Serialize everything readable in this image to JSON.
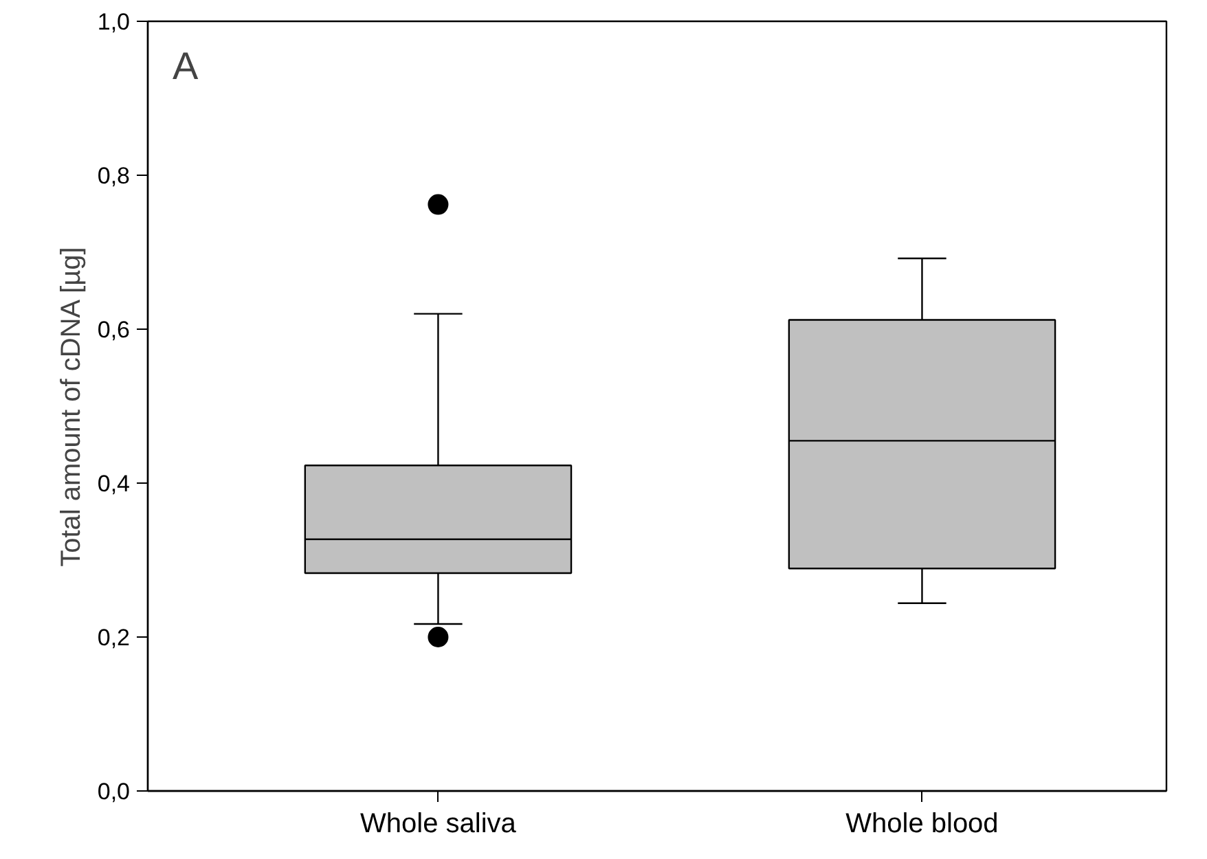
{
  "chart_data": {
    "type": "box",
    "ylabel": "Total amount of cDNA [µg]",
    "categories": [
      "Whole saliva",
      "Whole blood"
    ],
    "ylim": [
      0,
      1
    ],
    "yticks": [
      {
        "value": 0,
        "label": "0,0"
      },
      {
        "value": 0.2,
        "label": "0,2"
      },
      {
        "value": 0.4,
        "label": "0,4"
      },
      {
        "value": 0.6,
        "label": "0,6"
      },
      {
        "value": 0.8,
        "label": "0,8"
      },
      {
        "value": 1,
        "label": "1,0"
      }
    ],
    "annotations": [
      "A"
    ],
    "series": [
      {
        "color": "#c0c0c0",
        "boxes": [
          {
            "low": 0.217,
            "q1": 0.283,
            "median": 0.327,
            "q3": 0.423,
            "high": 0.62,
            "outliers": [
              0.762,
              0.2
            ]
          },
          {
            "low": 0.244,
            "q1": 0.289,
            "median": 0.455,
            "q3": 0.612,
            "high": 0.692
          }
        ]
      }
    ]
  }
}
